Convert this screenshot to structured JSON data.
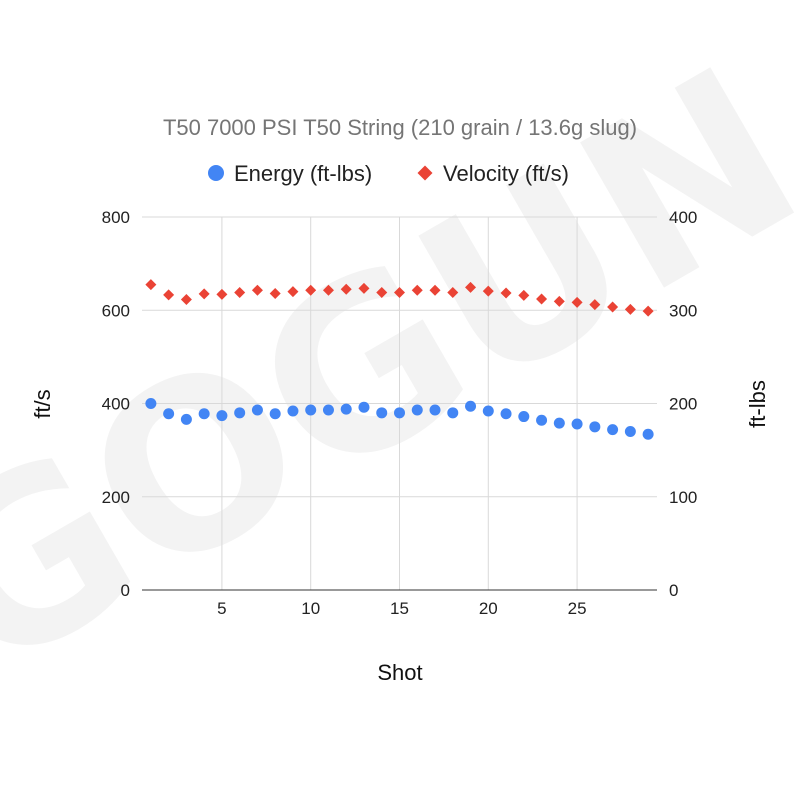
{
  "watermark": "GOGUN",
  "chart_data": {
    "type": "scatter",
    "title": "T50 7000 PSI T50 String (210 grain / 13.6g slug)",
    "xlabel": "Shot",
    "ylabel_left": "ft/s",
    "ylabel_right": "ft-lbs",
    "xlim": [
      0.5,
      29.5
    ],
    "xticks": [
      5,
      10,
      15,
      20,
      25
    ],
    "ylim_left": [
      0,
      800
    ],
    "yticks_left": [
      0,
      200,
      400,
      600,
      800
    ],
    "ylim_right": [
      0,
      400
    ],
    "yticks_right": [
      0,
      100,
      200,
      300,
      400
    ],
    "grid": true,
    "legend_position": "top",
    "x": [
      1,
      2,
      3,
      4,
      5,
      6,
      7,
      8,
      9,
      10,
      11,
      12,
      13,
      14,
      15,
      16,
      17,
      18,
      19,
      20,
      21,
      22,
      23,
      24,
      25,
      26,
      27,
      28,
      29
    ],
    "series": [
      {
        "name": "Energy (ft-lbs)",
        "axis": "right",
        "marker": "circle",
        "color": "#4285f4",
        "values": [
          200,
          189,
          183,
          189,
          187,
          190,
          193,
          189,
          192,
          193,
          193,
          194,
          196,
          190,
          190,
          193,
          193,
          190,
          197,
          192,
          189,
          186,
          182,
          179,
          178,
          175,
          172,
          170,
          167
        ]
      },
      {
        "name": "Velocity (ft/s)",
        "axis": "left",
        "marker": "diamond",
        "color": "#ea4335",
        "values": [
          655,
          633,
          623,
          635,
          634,
          638,
          643,
          636,
          640,
          643,
          643,
          645,
          647,
          638,
          638,
          643,
          643,
          638,
          649,
          641,
          637,
          632,
          624,
          619,
          617,
          612,
          607,
          602,
          598
        ]
      }
    ]
  }
}
